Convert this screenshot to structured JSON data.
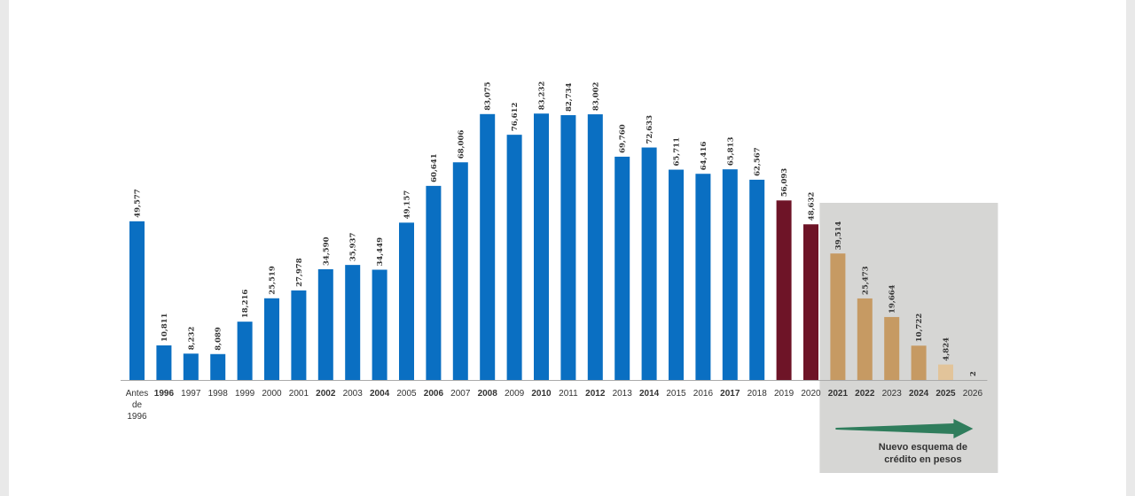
{
  "chart_data": {
    "type": "bar",
    "categories": [
      "Antes de 1996",
      "1996",
      "1997",
      "1998",
      "1999",
      "2000",
      "2001",
      "2002",
      "2003",
      "2004",
      "2005",
      "2006",
      "2007",
      "2008",
      "2009",
      "2010",
      "2011",
      "2012",
      "2013",
      "2014",
      "2015",
      "2016",
      "2017",
      "2018",
      "2019",
      "2020",
      "2021",
      "2022",
      "2023",
      "2024",
      "2025",
      "2026"
    ],
    "category_lines": [
      [
        "Antes",
        "de",
        "1996"
      ],
      [
        "1996"
      ],
      [
        "1997"
      ],
      [
        "1998"
      ],
      [
        "1999"
      ],
      [
        "2000"
      ],
      [
        "2001"
      ],
      [
        "2002"
      ],
      [
        "2003"
      ],
      [
        "2004"
      ],
      [
        "2005"
      ],
      [
        "2006"
      ],
      [
        "2007"
      ],
      [
        "2008"
      ],
      [
        "2009"
      ],
      [
        "2010"
      ],
      [
        "2011"
      ],
      [
        "2012"
      ],
      [
        "2013"
      ],
      [
        "2014"
      ],
      [
        "2015"
      ],
      [
        "2016"
      ],
      [
        "2017"
      ],
      [
        "2018"
      ],
      [
        "2019"
      ],
      [
        "2020"
      ],
      [
        "2021"
      ],
      [
        "2022"
      ],
      [
        "2023"
      ],
      [
        "2024"
      ],
      [
        "2025"
      ],
      [
        "2026"
      ]
    ],
    "bold_categories": [
      "1996",
      "2002",
      "2004",
      "2006",
      "2008",
      "2010",
      "2012",
      "2014",
      "2017",
      "2021",
      "2022",
      "2024",
      "2025"
    ],
    "values": [
      49577,
      10811,
      8232,
      8089,
      18216,
      25519,
      27978,
      34590,
      35937,
      34449,
      49157,
      60641,
      68006,
      83075,
      76612,
      83232,
      82734,
      83002,
      69760,
      72633,
      65711,
      64416,
      65813,
      62567,
      56093,
      48632,
      39514,
      25473,
      19664,
      10722,
      4824,
      2
    ],
    "value_labels": [
      "49,577",
      "10,811",
      "8,232",
      "8,089",
      "18,216",
      "25,519",
      "27,978",
      "34,590",
      "35,937",
      "34,449",
      "49,157",
      "60,641",
      "68,006",
      "83,075",
      "76,612",
      "83,232",
      "82,734",
      "83,002",
      "69,760",
      "72,633",
      "65,711",
      "64,416",
      "65,813",
      "62,567",
      "56,093",
      "48,632",
      "39,514",
      "25,473",
      "19,664",
      "10,722",
      "4,824",
      "2"
    ],
    "bar_colors": [
      "#0a6fc2",
      "#0a6fc2",
      "#0a6fc2",
      "#0a6fc2",
      "#0a6fc2",
      "#0a6fc2",
      "#0a6fc2",
      "#0a6fc2",
      "#0a6fc2",
      "#0a6fc2",
      "#0a6fc2",
      "#0a6fc2",
      "#0a6fc2",
      "#0a6fc2",
      "#0a6fc2",
      "#0a6fc2",
      "#0a6fc2",
      "#0a6fc2",
      "#0a6fc2",
      "#0a6fc2",
      "#0a6fc2",
      "#0a6fc2",
      "#0a6fc2",
      "#0a6fc2",
      "#6e1427",
      "#6e1427",
      "#c69a63",
      "#c69a63",
      "#c69a63",
      "#c69a63",
      "#e2c49a",
      "#c69a63"
    ],
    "ylim": [
      0,
      88000
    ],
    "grid": false,
    "title": "",
    "xlabel": "",
    "ylabel": "",
    "colors": {
      "blue": "#0a6fc2",
      "maroon": "#6e1427",
      "tan": "#c69a63",
      "light_tan": "#e2c49a",
      "panel": "#d6d6d4",
      "arrow": "#2f7d5c"
    }
  },
  "annotation": {
    "lines": [
      "Nuevo esquema de",
      "crédito en pesos"
    ],
    "arrow_icon": "right-arrow-icon"
  }
}
